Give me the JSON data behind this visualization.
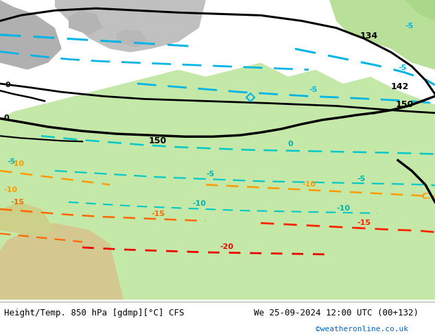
{
  "title_left": "Height/Temp. 850 hPa [gdmp][°C] CFS",
  "title_right": "We 25-09-2024 12:00 UTC (00+132)",
  "credit": "©weatheronline.co.uk",
  "credit_color": "#0066cc",
  "bg_color": "#c8c8c8",
  "green_light": "#c8e8b0",
  "green_dark": "#a8d890",
  "footer_bg": "#ffffff",
  "black": "#000000",
  "cyan_bright": "#00b4e6",
  "cyan_mid": "#00c0c0",
  "orange1": "#ff9900",
  "orange2": "#ff6600",
  "red1": "#ff2200",
  "red2": "#ee0000"
}
